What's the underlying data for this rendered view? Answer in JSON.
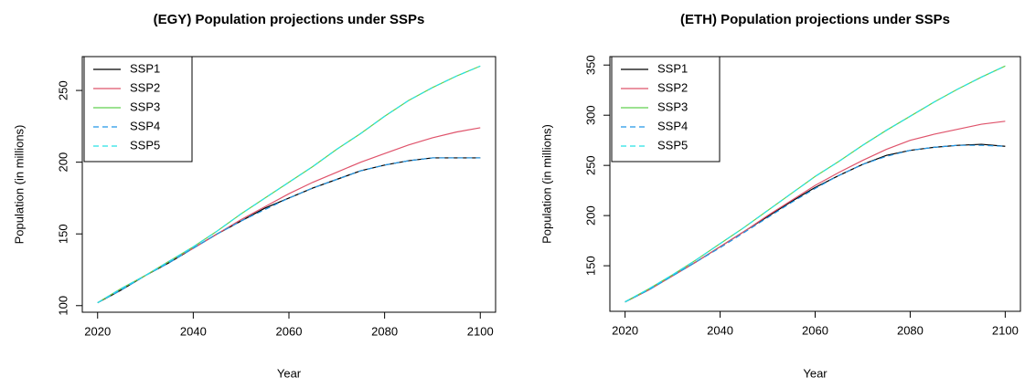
{
  "chart_data": [
    {
      "type": "line",
      "title": "(EGY) Population projections under SSPs",
      "x_label": "Year",
      "y_label": "Population (in millions)",
      "x": [
        2020,
        2025,
        2030,
        2035,
        2040,
        2045,
        2050,
        2055,
        2060,
        2065,
        2070,
        2075,
        2080,
        2085,
        2090,
        2095,
        2100
      ],
      "xlim": [
        2016.8,
        2103.2
      ],
      "xticks": [
        2020,
        2040,
        2060,
        2080,
        2100
      ],
      "ylim": [
        95.4,
        273.6
      ],
      "yticks": [
        100,
        150,
        200,
        250
      ],
      "legend": "top-left",
      "series": [
        {
          "name": "SSP1",
          "color": "#000000",
          "dashed": false,
          "values": [
            102,
            111,
            121,
            130,
            140,
            150,
            159,
            168,
            175,
            182,
            188,
            194,
            198,
            201,
            203,
            203,
            203
          ]
        },
        {
          "name": "SSP2",
          "color": "#DF536B",
          "dashed": false,
          "values": [
            102,
            112,
            121,
            131,
            140,
            150,
            160,
            169,
            178,
            186,
            193,
            200,
            206,
            212,
            217,
            221,
            224
          ]
        },
        {
          "name": "SSP3",
          "color": "#61D04F",
          "dashed": false,
          "values": [
            102,
            112,
            121,
            131,
            141,
            152,
            164,
            175,
            186,
            197,
            209,
            220,
            232,
            243,
            252,
            260,
            267
          ]
        },
        {
          "name": "SSP4",
          "color": "#2297E6",
          "dashed": true,
          "values": [
            102,
            111,
            121,
            130,
            140,
            150,
            159,
            167,
            175,
            182,
            188,
            194,
            198,
            201,
            203,
            203,
            203
          ]
        },
        {
          "name": "SSP5",
          "color": "#28E2E5",
          "dashed": true,
          "values": [
            102,
            112,
            121,
            131,
            141,
            152,
            164,
            175,
            186,
            197,
            209,
            220,
            232,
            243,
            252,
            260,
            267
          ]
        }
      ]
    },
    {
      "type": "line",
      "title": "(ETH) Population projections under SSPs",
      "x_label": "Year",
      "y_label": "Population (in millions)",
      "x": [
        2020,
        2025,
        2030,
        2035,
        2040,
        2045,
        2050,
        2055,
        2060,
        2065,
        2070,
        2075,
        2080,
        2085,
        2090,
        2095,
        2100
      ],
      "xlim": [
        2016.8,
        2103.2
      ],
      "xticks": [
        2020,
        2040,
        2060,
        2080,
        2100
      ],
      "ylim": [
        104.6,
        358.4
      ],
      "yticks": [
        150,
        200,
        250,
        300,
        350
      ],
      "legend": "top-left",
      "series": [
        {
          "name": "SSP1",
          "color": "#000000",
          "dashed": false,
          "values": [
            114,
            126,
            140,
            154,
            169,
            184,
            199,
            214,
            228,
            240,
            251,
            260,
            265,
            268,
            270,
            271,
            269
          ]
        },
        {
          "name": "SSP2",
          "color": "#DF536B",
          "dashed": false,
          "values": [
            114,
            126,
            140,
            154,
            169,
            184,
            200,
            215,
            230,
            243,
            255,
            266,
            275,
            281,
            286,
            291,
            294
          ]
        },
        {
          "name": "SSP3",
          "color": "#61D04F",
          "dashed": false,
          "values": [
            114,
            127,
            141,
            156,
            172,
            188,
            205,
            222,
            239,
            254,
            270,
            285,
            299,
            313,
            326,
            338,
            349
          ]
        },
        {
          "name": "SSP4",
          "color": "#2297E6",
          "dashed": true,
          "values": [
            114,
            126,
            140,
            154,
            168,
            183,
            198,
            213,
            227,
            240,
            251,
            259,
            265,
            268,
            270,
            270,
            269
          ]
        },
        {
          "name": "SSP5",
          "color": "#28E2E5",
          "dashed": true,
          "values": [
            114,
            127,
            141,
            156,
            172,
            188,
            205,
            222,
            239,
            254,
            270,
            285,
            299,
            313,
            326,
            338,
            349
          ]
        }
      ]
    }
  ]
}
